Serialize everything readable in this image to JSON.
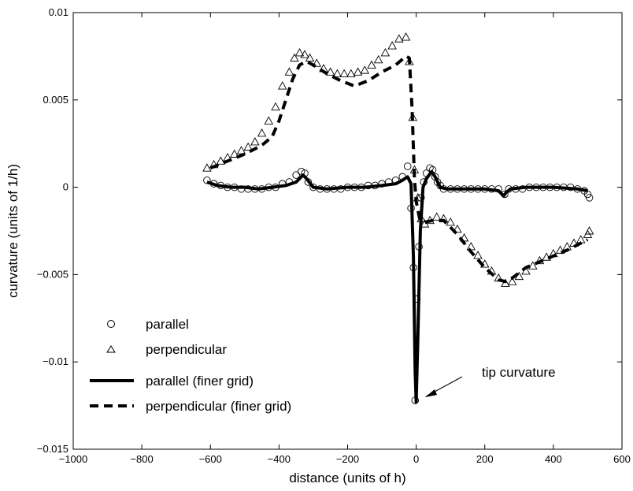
{
  "chart_data": {
    "type": "line",
    "xlabel": "distance (units of h)",
    "ylabel": "curvature (units of 1/h)",
    "xlim": [
      -1000,
      600
    ],
    "ylim": [
      -0.015,
      0.01
    ],
    "xticks": [
      -1000,
      -800,
      -600,
      -400,
      -200,
      0,
      200,
      400,
      600
    ],
    "yticks": [
      -0.015,
      -0.01,
      -0.005,
      0,
      0.005,
      0.01
    ],
    "xtick_labels": [
      "−1000",
      "−800",
      "−600",
      "−400",
      "−200",
      "0",
      "200",
      "400",
      "600"
    ],
    "ytick_labels": [
      "−0.015",
      "−0.01",
      "−0.005",
      "0",
      "0.005",
      "0.01"
    ],
    "grid": false,
    "legend_position": "lower-left",
    "annotation": {
      "text": "tip curvature",
      "point": [
        0,
        -0.0122
      ]
    },
    "series": [
      {
        "name": "parallel",
        "style": "markers",
        "marker": "circle",
        "x": [
          -610,
          -590,
          -570,
          -550,
          -530,
          -510,
          -490,
          -470,
          -450,
          -430,
          -410,
          -390,
          -370,
          -350,
          -335,
          -325,
          -315,
          -300,
          -280,
          -260,
          -240,
          -220,
          -200,
          -180,
          -160,
          -140,
          -120,
          -100,
          -80,
          -60,
          -40,
          -25,
          -15,
          -8,
          -3,
          2,
          8,
          14,
          22,
          30,
          40,
          48,
          55,
          62,
          70,
          80,
          100,
          120,
          140,
          160,
          180,
          200,
          220,
          240,
          258,
          270,
          290,
          310,
          330,
          350,
          370,
          390,
          410,
          430,
          450,
          470,
          490,
          500,
          505
        ],
        "y": [
          0.0004,
          0.0002,
          0.0001,
          0.0,
          0.0,
          -0.0001,
          -0.0001,
          -0.0001,
          -0.0001,
          0.0,
          0.0,
          0.0002,
          0.0003,
          0.0007,
          0.0009,
          0.0008,
          0.0003,
          0.0,
          -0.0001,
          -0.0001,
          -0.0001,
          -0.0001,
          0.0,
          0.0,
          0.0,
          0.0001,
          0.0001,
          0.0002,
          0.0003,
          0.0004,
          0.0006,
          0.0012,
          -0.0012,
          -0.0046,
          -0.0122,
          -0.0064,
          -0.0034,
          -0.0006,
          0.0003,
          0.0008,
          0.0011,
          0.001,
          0.0006,
          0.0003,
          0.0001,
          -0.0001,
          -0.0001,
          -0.0001,
          -0.0001,
          -0.0001,
          -0.0001,
          -0.0001,
          -0.0001,
          -0.0001,
          -0.0004,
          -0.0001,
          -0.0001,
          -0.0001,
          0.0,
          0.0,
          0.0,
          0.0,
          0.0,
          0.0,
          0.0,
          -0.0001,
          -0.0002,
          -0.0004,
          -0.0006
        ]
      },
      {
        "name": "perpendicular",
        "style": "markers",
        "marker": "triangle",
        "x": [
          -610,
          -590,
          -570,
          -550,
          -530,
          -510,
          -490,
          -470,
          -450,
          -430,
          -410,
          -390,
          -370,
          -355,
          -340,
          -325,
          -310,
          -290,
          -270,
          -250,
          -230,
          -210,
          -190,
          -170,
          -150,
          -130,
          -110,
          -90,
          -70,
          -50,
          -30,
          -20,
          -10,
          -5,
          5,
          15,
          25,
          40,
          60,
          80,
          100,
          120,
          140,
          160,
          180,
          200,
          220,
          240,
          260,
          280,
          300,
          320,
          340,
          360,
          380,
          400,
          420,
          440,
          460,
          480,
          500,
          505
        ],
        "y": [
          0.0011,
          0.0013,
          0.0015,
          0.0017,
          0.0019,
          0.0021,
          0.0023,
          0.0026,
          0.0031,
          0.0038,
          0.0046,
          0.0058,
          0.0066,
          0.0074,
          0.0077,
          0.0076,
          0.0074,
          0.0071,
          0.0068,
          0.0066,
          0.0065,
          0.0065,
          0.0065,
          0.0066,
          0.0067,
          0.007,
          0.0073,
          0.0077,
          0.0081,
          0.0085,
          0.0086,
          0.0072,
          0.004,
          0.001,
          -0.0006,
          -0.0018,
          -0.0021,
          -0.0019,
          -0.0017,
          -0.0018,
          -0.002,
          -0.0024,
          -0.0029,
          -0.0034,
          -0.0039,
          -0.0044,
          -0.0048,
          -0.0052,
          -0.0055,
          -0.0054,
          -0.0051,
          -0.0048,
          -0.0045,
          -0.0042,
          -0.004,
          -0.0038,
          -0.0036,
          -0.0034,
          -0.0032,
          -0.003,
          -0.0027,
          -0.0025
        ]
      },
      {
        "name": "parallel (finer grid)",
        "style": "solid",
        "x": [
          -610,
          -580,
          -540,
          -500,
          -460,
          -420,
          -380,
          -350,
          -330,
          -320,
          -300,
          -260,
          -200,
          -150,
          -100,
          -60,
          -40,
          -25,
          -15,
          -8,
          -3,
          0,
          5,
          12,
          20,
          30,
          45,
          55,
          70,
          90,
          130,
          200,
          240,
          255,
          262,
          275,
          320,
          400,
          470,
          500
        ],
        "y": [
          0.0003,
          0.0001,
          0.0,
          0.0,
          -0.0001,
          0.0,
          0.0001,
          0.0003,
          0.0007,
          0.0005,
          0.0,
          -0.0001,
          0.0,
          0.0,
          0.0001,
          0.0002,
          0.0004,
          0.0006,
          0.0002,
          -0.004,
          -0.0105,
          -0.0123,
          -0.0085,
          -0.0025,
          0.0,
          0.0005,
          0.0009,
          0.0006,
          0.0,
          -0.0001,
          -0.0001,
          -0.0001,
          -0.0002,
          -0.0005,
          -0.0003,
          -0.0001,
          0.0,
          0.0,
          -0.0001,
          -0.0002
        ]
      },
      {
        "name": "perpendicular (finer grid)",
        "style": "dashed",
        "x": [
          -600,
          -550,
          -500,
          -450,
          -420,
          -400,
          -380,
          -360,
          -340,
          -320,
          -300,
          -260,
          -220,
          -180,
          -140,
          -100,
          -60,
          -30,
          -20,
          -12,
          -5,
          0,
          10,
          25,
          50,
          80,
          120,
          160,
          200,
          240,
          260,
          280,
          320,
          380,
          440,
          500
        ],
        "y": [
          0.0011,
          0.0015,
          0.0019,
          0.0024,
          0.0029,
          0.0038,
          0.005,
          0.0062,
          0.007,
          0.0072,
          0.007,
          0.0065,
          0.0061,
          0.0058,
          0.0061,
          0.0066,
          0.007,
          0.0075,
          0.0074,
          0.0045,
          0.0005,
          -0.0008,
          -0.0018,
          -0.002,
          -0.0019,
          -0.0019,
          -0.0027,
          -0.0037,
          -0.0046,
          -0.0053,
          -0.0054,
          -0.0052,
          -0.0046,
          -0.0041,
          -0.0036,
          -0.003
        ]
      }
    ]
  }
}
